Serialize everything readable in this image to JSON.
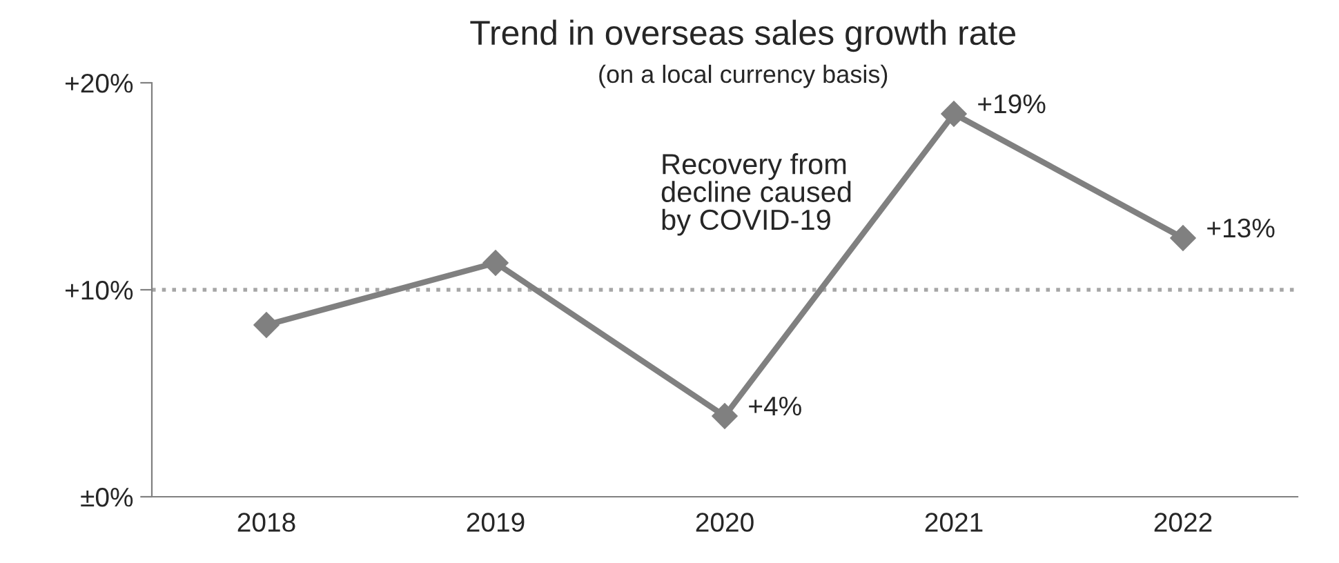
{
  "chart_data": {
    "type": "line",
    "title": "Trend in overseas sales growth rate",
    "subtitle": "(on a local currency basis)",
    "categories": [
      "2018",
      "2019",
      "2020",
      "2021",
      "2022"
    ],
    "series": [
      {
        "color": "#808080",
        "values": [
          8.3,
          11.3,
          3.9,
          18.5,
          12.5
        ],
        "value_labels": [
          null,
          null,
          "+4%",
          "+19%",
          "+13%"
        ]
      }
    ],
    "ylim": [
      0,
      20
    ],
    "yticks": [
      {
        "value": 0,
        "label": "±0%"
      },
      {
        "value": 10,
        "label": "+10%"
      },
      {
        "value": 20,
        "label": "+20%"
      }
    ],
    "ref_lines": [
      {
        "axis": "y",
        "value": 10,
        "color": "#a6a6a6",
        "line_style": "dotted"
      }
    ],
    "annotations": [
      "Recovery from\ndecline caused\nby COVID-19"
    ],
    "marker": "diamond",
    "line_style": "solid",
    "grid": false,
    "legend": false
  }
}
